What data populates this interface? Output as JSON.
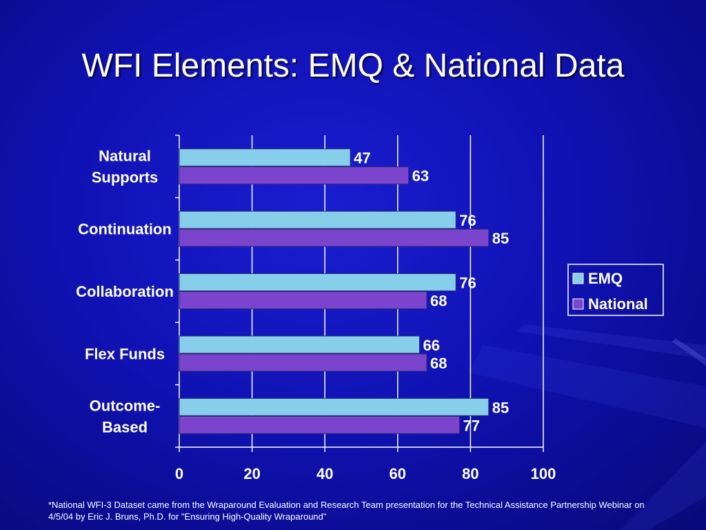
{
  "title": "WFI Elements: EMQ & National Data",
  "footnote": "*National WFI-3 Dataset came from the Wraparound Evaluation and Research Team presentation for the Technical Assistance Partnership Webinar on 4/5/04 by Eric J. Bruns, Ph.D. for \"Ensuring High-Quality Wraparound\"",
  "chart_data": {
    "type": "bar",
    "orientation": "horizontal",
    "categories": [
      [
        "Natural",
        "Supports"
      ],
      [
        "Continuation"
      ],
      [
        "Collaboration"
      ],
      [
        "Flex Funds"
      ],
      [
        "Outcome-",
        "Based"
      ]
    ],
    "series": [
      {
        "name": "EMQ",
        "values": [
          47,
          76,
          76,
          66,
          85
        ],
        "color": "#87CEEB"
      },
      {
        "name": "National",
        "values": [
          63,
          85,
          68,
          68,
          77
        ],
        "color": "#7B44CC"
      }
    ],
    "xlim": [
      0,
      100
    ],
    "xticks": [
      0,
      20,
      40,
      60,
      80,
      100
    ],
    "grid": true,
    "legend_position": "right"
  }
}
